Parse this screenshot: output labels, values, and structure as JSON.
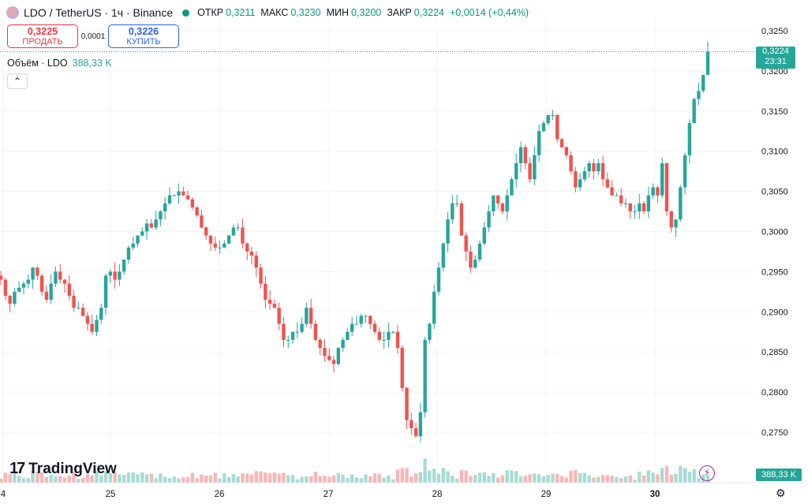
{
  "header": {
    "symbol": "LDO / TetherUS · 1ч · Binance",
    "open_label": "ОТКР",
    "open": "0,3211",
    "high_label": "МАКС",
    "high": "0,3230",
    "low_label": "МИН",
    "low": "0,3200",
    "close_label": "ЗАКР",
    "close": "0,3224",
    "change": "+0,0014 (+0,44%)"
  },
  "trade": {
    "sell_price": "0,3225",
    "sell_label": "ПРОДАТЬ",
    "spread": "0,0001",
    "buy_price": "0,3226",
    "buy_label": "КУПИТЬ"
  },
  "volume": {
    "label": "Объём · LDO",
    "value": "388,33 K"
  },
  "collapse_icon": "chevron-up-icon",
  "brand": "TradingView",
  "price_badge": {
    "price": "0,3224",
    "countdown": "23:31"
  },
  "volume_badge": "388,33 K",
  "colors": {
    "up": "#26a69a",
    "down": "#ef5350",
    "badge": "#26a69a"
  },
  "chart_data": {
    "type": "candlestick",
    "y_ticks": [
      "0,3250",
      "0,3200",
      "0,3150",
      "0,3100",
      "0,3050",
      "0,3000",
      "0,2950",
      "0,2900",
      "0,2850",
      "0,2800",
      "0,2750"
    ],
    "x_ticks": [
      "4",
      "25",
      "26",
      "27",
      "28",
      "29",
      "30"
    ],
    "ylim": [
      0.272,
      0.327
    ],
    "last_price": 0.3224,
    "candles_close_path": [
      0.2945,
      0.294,
      0.292,
      0.291,
      0.2925,
      0.293,
      0.2935,
      0.294,
      0.2955,
      0.2945,
      0.2925,
      0.2915,
      0.2935,
      0.295,
      0.294,
      0.2935,
      0.292,
      0.2905,
      0.2905,
      0.2895,
      0.2885,
      0.2875,
      0.289,
      0.2905,
      0.2945,
      0.295,
      0.294,
      0.295,
      0.2965,
      0.298,
      0.2985,
      0.2995,
      0.3,
      0.301,
      0.3005,
      0.3015,
      0.3025,
      0.3035,
      0.3045,
      0.3045,
      0.305,
      0.3045,
      0.304,
      0.303,
      0.302,
      0.3005,
      0.2995,
      0.2985,
      0.298,
      0.298,
      0.2985,
      0.2995,
      0.3005,
      0.3005,
      0.2985,
      0.2975,
      0.297,
      0.2955,
      0.2935,
      0.2915,
      0.291,
      0.2905,
      0.2885,
      0.2865,
      0.2865,
      0.2875,
      0.2875,
      0.2885,
      0.2905,
      0.2885,
      0.2865,
      0.2855,
      0.2845,
      0.284,
      0.2835,
      0.2855,
      0.2865,
      0.2875,
      0.2885,
      0.2885,
      0.2895,
      0.2895,
      0.2885,
      0.2875,
      0.2865,
      0.2865,
      0.2875,
      0.2875,
      0.2855,
      0.2805,
      0.2765,
      0.2755,
      0.2745,
      0.2775,
      0.2865,
      0.2885,
      0.2925,
      0.2955,
      0.2985,
      0.3015,
      0.3035,
      0.3035,
      0.2995,
      0.2975,
      0.2955,
      0.2965,
      0.2985,
      0.3005,
      0.3025,
      0.3045,
      0.3035,
      0.3025,
      0.3045,
      0.3065,
      0.3085,
      0.3105,
      0.3085,
      0.3065,
      0.3095,
      0.3125,
      0.3135,
      0.3145,
      0.3145,
      0.3115,
      0.3105,
      0.3095,
      0.3075,
      0.3055,
      0.3065,
      0.3075,
      0.3085,
      0.3075,
      0.3085,
      0.3065,
      0.3055,
      0.3045,
      0.3045,
      0.3035,
      0.3035,
      0.3025,
      0.3025,
      0.3035,
      0.3025,
      0.3045,
      0.3055,
      0.3045,
      0.3085,
      0.3025,
      0.3005,
      0.3015,
      0.3055,
      0.3095,
      0.3135,
      0.3165,
      0.3175,
      0.3195,
      0.3224
    ]
  }
}
